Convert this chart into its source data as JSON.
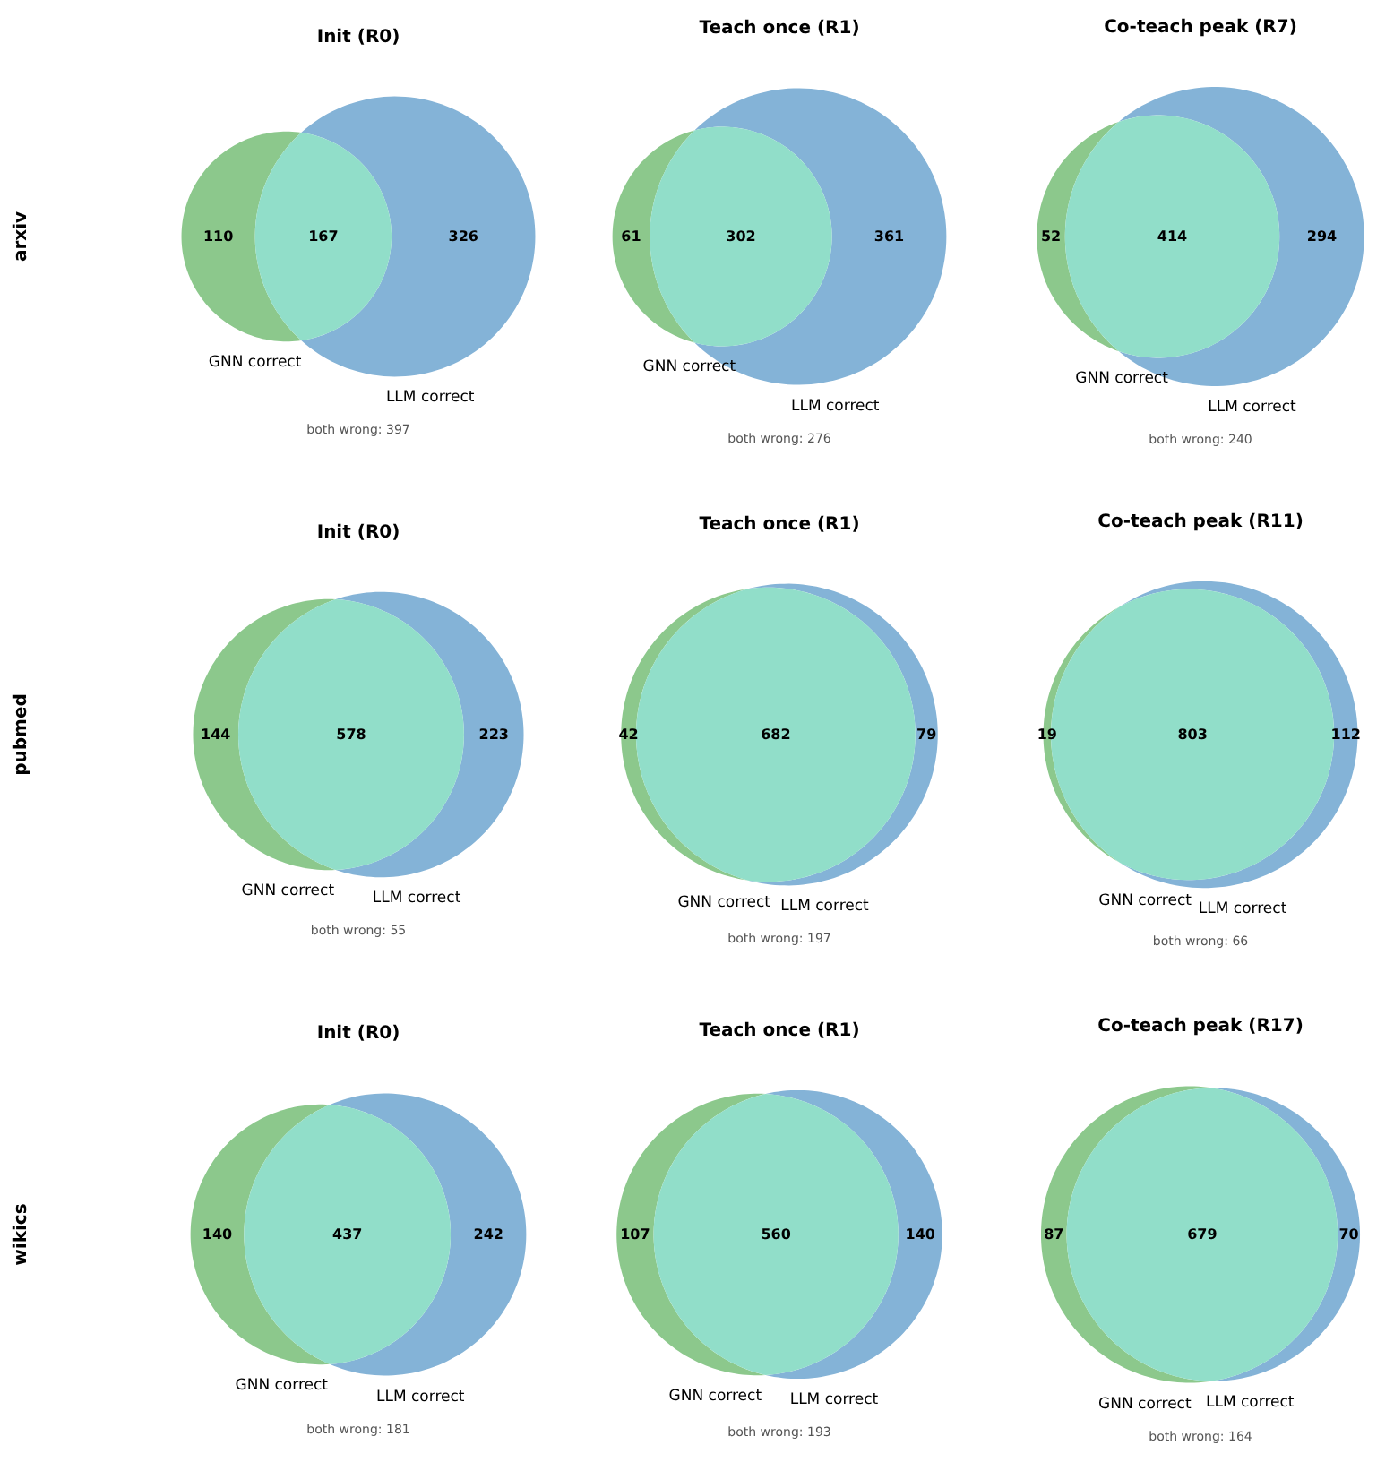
{
  "chart_data": [
    {
      "type": "other",
      "title": "Init (R0)",
      "ylabel": "arxiv",
      "categories": [
        null,
        null,
        null
      ],
      "values": [
        110,
        167,
        326
      ],
      "colors": [
        "#8cc88c",
        "#91dec9",
        "#84b3d7"
      ],
      "data_labels": true,
      "annotations": [
        "GNN correct",
        "LLM correct",
        "both wrong: 397"
      ]
    },
    {
      "type": "other",
      "title": "Teach once (R1)",
      "categories": [
        null,
        null,
        null
      ],
      "values": [
        61,
        302,
        361
      ],
      "colors": [
        "#8cc88c",
        "#91dec9",
        "#84b3d7"
      ],
      "data_labels": true,
      "annotations": [
        "GNN correct",
        "LLM correct",
        "both wrong: 276"
      ]
    },
    {
      "type": "other",
      "title": "Co-teach peak (R7)",
      "categories": [
        null,
        null,
        null
      ],
      "values": [
        52,
        414,
        294
      ],
      "colors": [
        "#8cc88c",
        "#91dec9",
        "#84b3d7"
      ],
      "data_labels": true,
      "annotations": [
        "GNN correct",
        "LLM correct",
        "both wrong: 240"
      ]
    },
    {
      "type": "other",
      "title": "Init (R0)",
      "ylabel": "pubmed",
      "categories": [
        null,
        null,
        null
      ],
      "values": [
        144,
        578,
        223
      ],
      "colors": [
        "#8cc88c",
        "#91dec9",
        "#84b3d7"
      ],
      "data_labels": true,
      "annotations": [
        "GNN correct",
        "LLM correct",
        "both wrong: 55"
      ]
    },
    {
      "type": "other",
      "title": "Teach once (R1)",
      "categories": [
        null,
        null,
        null
      ],
      "values": [
        42,
        682,
        79
      ],
      "colors": [
        "#8cc88c",
        "#91dec9",
        "#84b3d7"
      ],
      "data_labels": true,
      "annotations": [
        "GNN correct",
        "LLM correct",
        "both wrong: 197"
      ]
    },
    {
      "type": "other",
      "title": "Co-teach peak (R11)",
      "categories": [
        null,
        null,
        null
      ],
      "values": [
        19,
        803,
        112
      ],
      "colors": [
        "#8cc88c",
        "#91dec9",
        "#84b3d7"
      ],
      "data_labels": true,
      "annotations": [
        "GNN correct",
        "LLM correct",
        "both wrong: 66"
      ]
    },
    {
      "type": "other",
      "title": "Init (R0)",
      "ylabel": "wikics",
      "categories": [
        null,
        null,
        null
      ],
      "values": [
        140,
        437,
        242
      ],
      "colors": [
        "#8cc88c",
        "#91dec9",
        "#84b3d7"
      ],
      "data_labels": true,
      "annotations": [
        "GNN correct",
        "LLM correct",
        "both wrong: 181"
      ]
    },
    {
      "type": "other",
      "title": "Teach once (R1)",
      "categories": [
        null,
        null,
        null
      ],
      "values": [
        107,
        560,
        140
      ],
      "colors": [
        "#8cc88c",
        "#91dec9",
        "#84b3d7"
      ],
      "data_labels": true,
      "annotations": [
        "GNN correct",
        "LLM correct",
        "both wrong: 193"
      ]
    },
    {
      "type": "other",
      "title": "Co-teach peak (R17)",
      "categories": [
        null,
        null,
        null
      ],
      "values": [
        87,
        679,
        70
      ],
      "colors": [
        "#8cc88c",
        "#91dec9",
        "#84b3d7"
      ],
      "data_labels": true,
      "annotations": [
        "GNN correct",
        "LLM correct",
        "both wrong: 164"
      ]
    }
  ]
}
